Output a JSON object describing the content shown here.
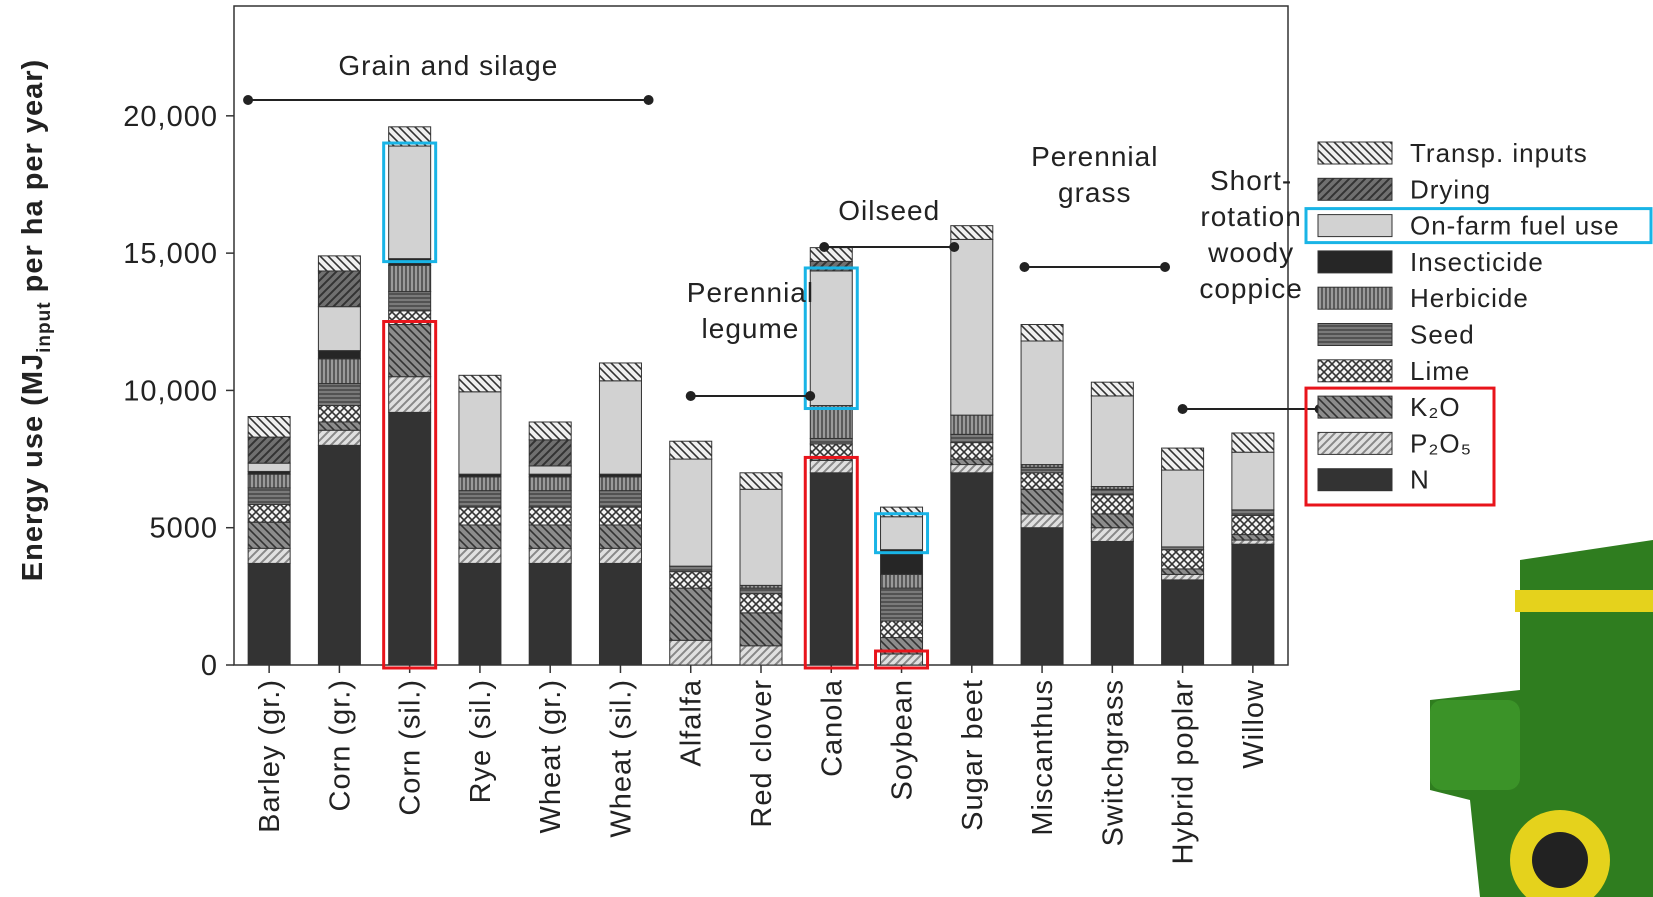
{
  "chart_data": {
    "type": "stacked_bar",
    "y_label": [
      "Energy use (MJ",
      "input",
      " per ha per year)"
    ],
    "categories": [
      "Barley (gr.)",
      "Corn (gr.)",
      "Corn (sil.)",
      "Rye (sil.)",
      "Wheat (gr.)",
      "Wheat (sil.)",
      "Alfalfa",
      "Red clover",
      "Canola",
      "Soybean",
      "Sugar beet",
      "Miscanthus",
      "Switchgrass",
      "Hybrid poplar",
      "Willow"
    ],
    "series": [
      {
        "name": "N",
        "color": "#333333",
        "values": [
          3700,
          8000,
          9200,
          3700,
          3700,
          3700,
          0,
          0,
          7000,
          0,
          7000,
          5000,
          4500,
          3100,
          4400
        ]
      },
      {
        "name": "P₂O₅",
        "color": "#e0e0e0",
        "values": [
          550,
          550,
          1300,
          550,
          550,
          550,
          900,
          700,
          450,
          400,
          300,
          500,
          500,
          200,
          150
        ]
      },
      {
        "name": "K₂O",
        "color": "#8c8c8c",
        "values": [
          950,
          300,
          1900,
          850,
          850,
          850,
          1900,
          1200,
          100,
          600,
          200,
          900,
          500,
          200,
          200
        ]
      },
      {
        "name": "Lime",
        "color": "#f4f4f4",
        "values": [
          650,
          600,
          500,
          650,
          650,
          650,
          600,
          700,
          500,
          600,
          600,
          600,
          700,
          700,
          700
        ]
      },
      {
        "name": "Seed",
        "color": "#7a7a7a",
        "values": [
          600,
          800,
          700,
          600,
          600,
          600,
          200,
          200,
          200,
          1200,
          300,
          200,
          200,
          100,
          200
        ]
      },
      {
        "name": "Herbicide",
        "color": "#9a9a9a",
        "values": [
          500,
          900,
          950,
          500,
          500,
          500,
          0,
          100,
          1200,
          500,
          700,
          100,
          100,
          0,
          0
        ]
      },
      {
        "name": "Insecticide",
        "color": "#262626",
        "values": [
          100,
          300,
          250,
          100,
          100,
          100,
          0,
          0,
          0,
          900,
          0,
          0,
          0,
          0,
          0
        ]
      },
      {
        "name": "On-farm fuel use",
        "color": "#d2d2d2",
        "values": [
          300,
          1600,
          4100,
          3000,
          300,
          3400,
          3900,
          3500,
          4900,
          1200,
          6400,
          4500,
          3300,
          2800,
          2100
        ]
      },
      {
        "name": "Drying",
        "color": "#707070",
        "values": [
          950,
          1300,
          0,
          0,
          950,
          0,
          0,
          0,
          350,
          0,
          0,
          0,
          0,
          0,
          0
        ]
      },
      {
        "name": "Transp. inputs",
        "color": "#f0f0f0",
        "values": [
          750,
          550,
          700,
          600,
          650,
          650,
          650,
          600,
          500,
          350,
          500,
          600,
          500,
          800,
          700
        ]
      }
    ],
    "annotations": [
      [
        "Grain and silage"
      ],
      [
        "Perennial",
        "legume"
      ],
      [
        "Oilseed"
      ],
      [
        "Perennial",
        "grass"
      ],
      [
        "Short-",
        "rotation",
        "woody",
        "coppice"
      ]
    ],
    "ylim": [
      0,
      24000
    ],
    "yticks": [
      0,
      5000,
      {
        "value": 10000,
        "label": "10,000"
      },
      {
        "value": 15000,
        "label": "15,000"
      },
      {
        "value": 20000,
        "label": "20,000"
      }
    ]
  }
}
